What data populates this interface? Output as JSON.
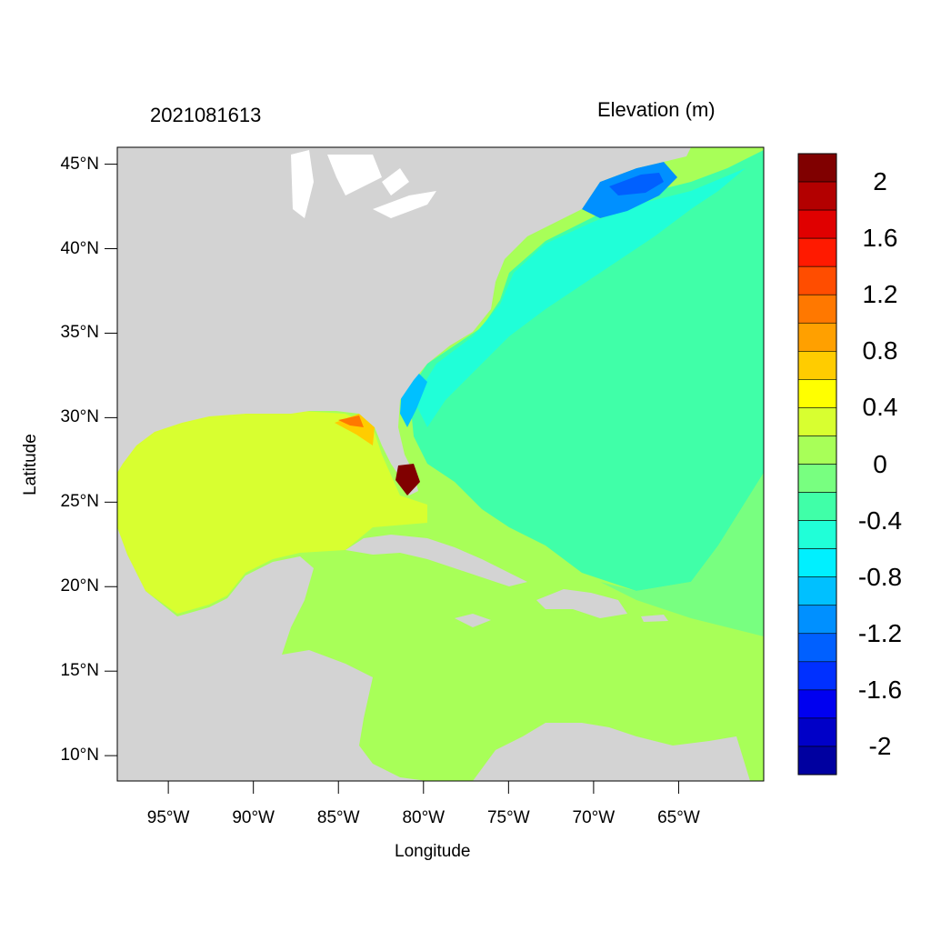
{
  "map": {
    "left_title": "2021081613",
    "right_title": "Elevation (m)",
    "xlabel": "Longitude",
    "ylabel": "Latitude",
    "lon_range": [
      -98,
      -60
    ],
    "lat_range": [
      8.5,
      46
    ],
    "lat_ticks": [
      {
        "value": 45,
        "label": "45°N"
      },
      {
        "value": 40,
        "label": "40°N"
      },
      {
        "value": 35,
        "label": "35°N"
      },
      {
        "value": 30,
        "label": "30°N"
      },
      {
        "value": 25,
        "label": "25°N"
      },
      {
        "value": 20,
        "label": "20°N"
      },
      {
        "value": 15,
        "label": "15°N"
      },
      {
        "value": 10,
        "label": "10°N"
      }
    ],
    "lon_ticks": [
      {
        "value": -95,
        "label": "95°W"
      },
      {
        "value": -90,
        "label": "90°W"
      },
      {
        "value": -85,
        "label": "85°W"
      },
      {
        "value": -80,
        "label": "80°W"
      },
      {
        "value": -75,
        "label": "75°W"
      },
      {
        "value": -70,
        "label": "70°W"
      },
      {
        "value": -65,
        "label": "65°W"
      }
    ],
    "land_color": "#d3d3d3"
  },
  "colorbar": {
    "colors_top_to_bottom": [
      "#800000",
      "#b30000",
      "#e00000",
      "#ff1a00",
      "#ff4d00",
      "#ff7800",
      "#ffa000",
      "#ffcc00",
      "#ffff00",
      "#d8ff30",
      "#a8ff58",
      "#78ff80",
      "#40ffa8",
      "#20ffd8",
      "#00f0ff",
      "#00c0ff",
      "#0090ff",
      "#0060ff",
      "#0030ff",
      "#0000f0",
      "#0000c8",
      "#0000a0"
    ],
    "labels": [
      "2",
      "1.6",
      "1.2",
      "0.8",
      "0.4",
      "0",
      "-0.4",
      "-0.8",
      "-1.2",
      "-1.6",
      "-2"
    ]
  }
}
